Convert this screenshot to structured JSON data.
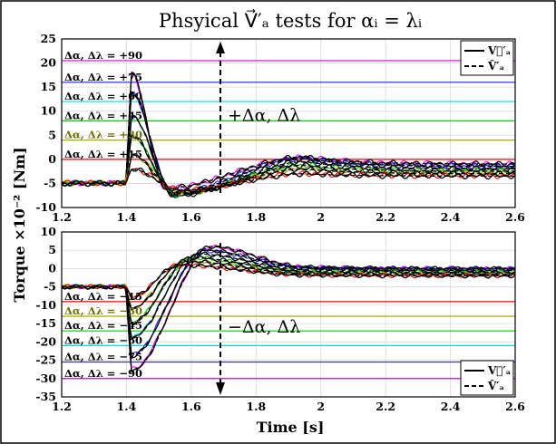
{
  "title": "Phsyical V⃗′ₐ tests for αᵢ = λᵢ",
  "xlabel": "Time [s]",
  "ylabel": "Torque ×10⁻² [Nm]",
  "chart_data": [
    {
      "type": "line",
      "panel": "top",
      "annotation": "+Δα, Δλ",
      "xlim": [
        1.2,
        2.6
      ],
      "ylim": [
        -10,
        25
      ],
      "xticks": [
        1.2,
        1.4,
        1.6,
        1.8,
        2,
        2.2,
        2.4,
        2.6
      ],
      "yticks": [
        -10,
        -5,
        0,
        5,
        10,
        15,
        20,
        25
      ],
      "grid": true,
      "legend_position": "top-right",
      "legend": [
        "V⃗′ₐ",
        "V̂′ₐ"
      ],
      "step_time": 1.4,
      "reference_levels": [
        {
          "label": "Δα, Δλ = +90",
          "y": 20.5,
          "color": "#d400d4"
        },
        {
          "label": "Δα, Δλ = +75",
          "y": 16,
          "color": "#2020ff"
        },
        {
          "label": "Δα, Δλ = +60",
          "y": 12,
          "color": "#00e0e0"
        },
        {
          "label": "Δα, Δλ = +45",
          "y": 8,
          "color": "#00cc00"
        },
        {
          "label": "Δα, Δλ = +30",
          "y": 4,
          "color": "#aaaa00"
        },
        {
          "label": "Δα, Δλ = +15",
          "y": 0,
          "color": "#ff0000"
        }
      ],
      "series": [
        {
          "color": "#ff00ff",
          "pre": -5,
          "peak": 18,
          "dip": -6,
          "dip_t": 1.52,
          "over": 0.5,
          "final": -1
        },
        {
          "color": "#2020ff",
          "pre": -5,
          "peak": 14,
          "dip": -7,
          "dip_t": 1.54,
          "over": 0.2,
          "final": -1.5
        },
        {
          "color": "#00e0e0",
          "pre": -5,
          "peak": 9,
          "dip": -7.5,
          "dip_t": 1.55,
          "over": -0.5,
          "final": -2
        },
        {
          "color": "#00cc00",
          "pre": -5,
          "peak": 5,
          "dip": -7.5,
          "dip_t": 1.55,
          "over": -1.2,
          "final": -2.5
        },
        {
          "color": "#aaaa00",
          "pre": -5,
          "peak": 1,
          "dip": -7,
          "dip_t": 1.56,
          "over": -2,
          "final": -3
        },
        {
          "color": "#ff0000",
          "pre": -5,
          "peak": -2,
          "dip": -6.5,
          "dip_t": 1.57,
          "over": -3,
          "final": -3.5
        }
      ]
    },
    {
      "type": "line",
      "panel": "bottom",
      "annotation": "−Δα, Δλ",
      "xlim": [
        1.2,
        2.6
      ],
      "ylim": [
        -35,
        10
      ],
      "xticks": [
        1.2,
        1.4,
        1.6,
        1.8,
        2,
        2.2,
        2.4,
        2.6
      ],
      "yticks": [
        -35,
        -30,
        -25,
        -20,
        -15,
        -10,
        -5,
        0,
        5,
        10
      ],
      "grid": true,
      "legend_position": "bottom-right",
      "legend": [
        "V⃗′ₐ",
        "V̂′ₐ"
      ],
      "step_time": 1.4,
      "reference_levels": [
        {
          "label": "Δα, Δλ = −15",
          "y": -9,
          "color": "#ff0000"
        },
        {
          "label": "Δα, Δλ = −30",
          "y": -13,
          "color": "#aaaa00"
        },
        {
          "label": "Δα, Δλ = −45",
          "y": -17,
          "color": "#00cc00"
        },
        {
          "label": "Δα, Δλ = −60",
          "y": -21,
          "color": "#00e0e0"
        },
        {
          "label": "Δα, Δλ = −75",
          "y": -25.5,
          "color": "#2020ff"
        },
        {
          "label": "Δα, Δλ = −90",
          "y": -30,
          "color": "#d400d4"
        }
      ],
      "series": [
        {
          "color": "#ff00ff",
          "pre": -5,
          "peak": -28,
          "dip": 6,
          "dip_t": 1.66,
          "over": 0.5,
          "final": 0
        },
        {
          "color": "#2020ff",
          "pre": -5,
          "peak": -24,
          "dip": 5,
          "dip_t": 1.64,
          "over": 0.2,
          "final": 0
        },
        {
          "color": "#00e0e0",
          "pre": -5,
          "peak": -19,
          "dip": 4,
          "dip_t": 1.62,
          "over": -0.3,
          "final": -0.5
        },
        {
          "color": "#00cc00",
          "pre": -5,
          "peak": -15,
          "dip": 3,
          "dip_t": 1.6,
          "over": -0.8,
          "final": -1
        },
        {
          "color": "#aaaa00",
          "pre": -5,
          "peak": -11,
          "dip": 2,
          "dip_t": 1.58,
          "over": -1.3,
          "final": -1.5
        },
        {
          "color": "#ff0000",
          "pre": -5,
          "peak": -8,
          "dip": 1,
          "dip_t": 1.56,
          "over": -1.8,
          "final": -2
        }
      ]
    }
  ]
}
